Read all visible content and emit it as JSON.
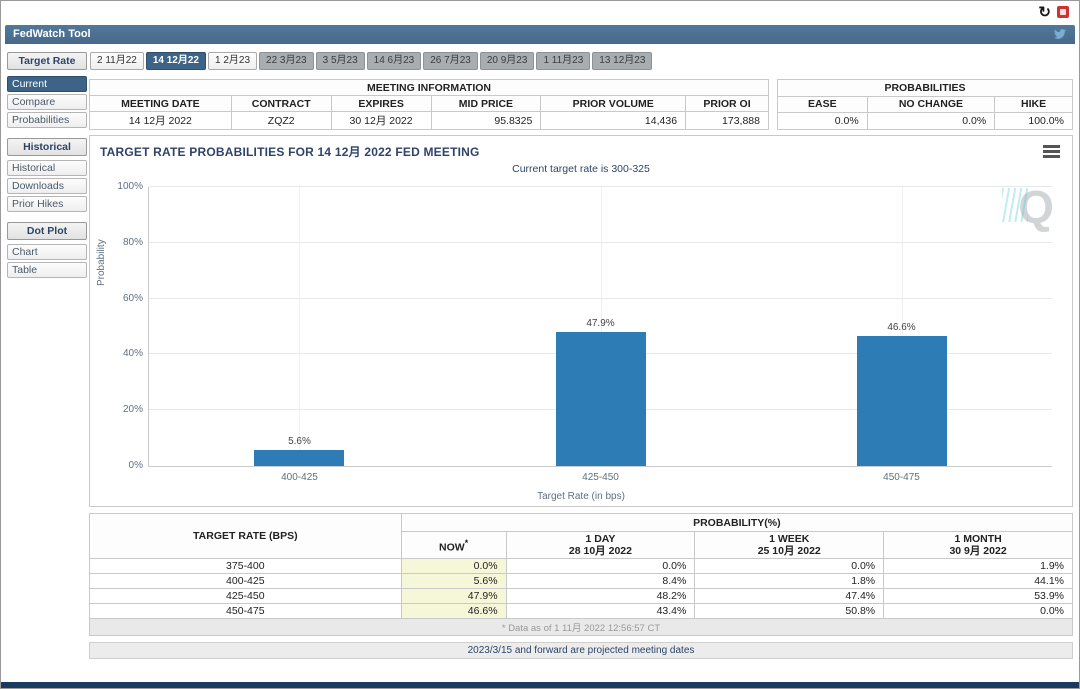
{
  "titlebar": {
    "app_title": "FedWatch Tool"
  },
  "top_icons": {
    "refresh_glyph": "↻"
  },
  "tabs": {
    "section_label": "Target Rate",
    "items": [
      {
        "label": "2 11月22",
        "state": "normal"
      },
      {
        "label": "14 12月22",
        "state": "selected"
      },
      {
        "label": "1 2月23",
        "state": "normal"
      },
      {
        "label": "22 3月23",
        "state": "projected"
      },
      {
        "label": "3 5月23",
        "state": "projected"
      },
      {
        "label": "14 6月23",
        "state": "projected"
      },
      {
        "label": "26 7月23",
        "state": "projected"
      },
      {
        "label": "20 9月23",
        "state": "projected"
      },
      {
        "label": "1 11月23",
        "state": "projected"
      },
      {
        "label": "13 12月23",
        "state": "projected"
      }
    ]
  },
  "sidebar": {
    "groups": [
      {
        "header": "Target Rate",
        "items": [
          {
            "label": "Current",
            "selected": true
          },
          {
            "label": "Compare",
            "selected": false
          },
          {
            "label": "Probabilities",
            "selected": false
          }
        ]
      },
      {
        "header": "Historical",
        "items": [
          {
            "label": "Historical",
            "selected": false
          },
          {
            "label": "Downloads",
            "selected": false
          },
          {
            "label": "Prior Hikes",
            "selected": false
          }
        ]
      },
      {
        "header": "Dot Plot",
        "items": [
          {
            "label": "Chart",
            "selected": false
          },
          {
            "label": "Table",
            "selected": false
          }
        ]
      }
    ]
  },
  "meeting_information": {
    "title": "MEETING INFORMATION",
    "columns": [
      "MEETING DATE",
      "CONTRACT",
      "EXPIRES",
      "MID PRICE",
      "PRIOR VOLUME",
      "PRIOR OI"
    ],
    "values": [
      "14 12月 2022",
      "ZQZ2",
      "30 12月 2022",
      "95.8325",
      "14,436",
      "173,888"
    ]
  },
  "probabilities_summary": {
    "title": "PROBABILITIES",
    "columns": [
      "EASE",
      "NO CHANGE",
      "HIKE"
    ],
    "values": [
      "0.0%",
      "0.0%",
      "100.0%"
    ]
  },
  "chart_data": {
    "type": "bar",
    "title": "TARGET RATE PROBABILITIES FOR 14 12月 2022 FED MEETING",
    "subtitle": "Current target rate is 300-325",
    "categories": [
      "400-425",
      "425-450",
      "450-475"
    ],
    "values": [
      5.6,
      47.9,
      46.6
    ],
    "value_labels": [
      "5.6%",
      "47.9%",
      "46.6%"
    ],
    "xlabel": "Target Rate (in bps)",
    "ylabel": "Probability",
    "ylim": [
      0,
      100
    ],
    "yticks": [
      0,
      20,
      40,
      60,
      80,
      100
    ],
    "bar_color": "#2d7cb5",
    "grid": true,
    "legend": "none"
  },
  "probability_table": {
    "corner_header": "TARGET RATE (BPS)",
    "group_header": "PROBABILITY(%)",
    "col_headers": [
      {
        "line1": "NOW",
        "sup": "*",
        "line2": ""
      },
      {
        "line1": "1 DAY",
        "line2": "28 10月 2022"
      },
      {
        "line1": "1 WEEK",
        "line2": "25 10月 2022"
      },
      {
        "line1": "1 MONTH",
        "line2": "30 9月 2022"
      }
    ],
    "rows": [
      {
        "rate": "375-400",
        "now": "0.0%",
        "day": "0.0%",
        "week": "0.0%",
        "month": "1.9%"
      },
      {
        "rate": "400-425",
        "now": "5.6%",
        "day": "8.4%",
        "week": "1.8%",
        "month": "44.1%"
      },
      {
        "rate": "425-450",
        "now": "47.9%",
        "day": "48.2%",
        "week": "47.4%",
        "month": "53.9%"
      },
      {
        "rate": "450-475",
        "now": "46.6%",
        "day": "43.4%",
        "week": "50.8%",
        "month": "0.0%"
      }
    ],
    "footnote": "* Data as of 1 11月 2022 12:56:57 CT"
  },
  "footer": {
    "projected_note": "2023/3/15 and forward are projected meeting dates"
  },
  "watermark": {
    "letter": "Q"
  }
}
